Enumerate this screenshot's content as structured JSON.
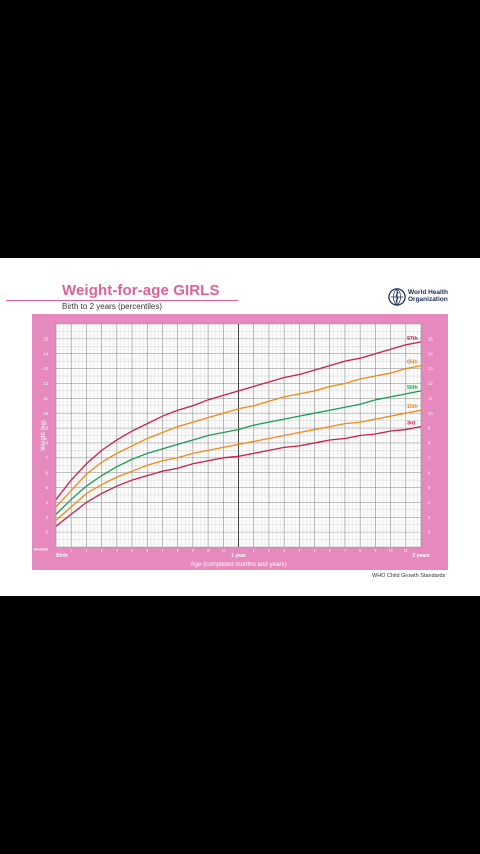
{
  "card": {
    "title": "Weight-for-age GIRLS",
    "subtitle": "Birth to 2 years (percentiles)",
    "logo_text": "World Health\nOrganization",
    "footer": "WHO Child Growth Standards"
  },
  "colors": {
    "frame": "#e689bd",
    "title": "#e0609a",
    "p97": "#c8204f",
    "p85": "#ee8a16",
    "p50": "#1b9b54",
    "p15": "#ee8a16",
    "p3": "#c8204f"
  },
  "chart_data": {
    "type": "line",
    "title": "Weight-for-age GIRLS",
    "subtitle": "Birth to 2 years (percentiles)",
    "xlabel": "Age (completed months and years)",
    "ylabel": "Weight (kg)",
    "months_label": "Months",
    "x_start_label": "Birth",
    "x_milestones": [
      {
        "month": 12,
        "label": "1 year"
      },
      {
        "month": 24,
        "label": "2 years"
      }
    ],
    "x_month_ticks": [
      "1",
      "2",
      "3",
      "4",
      "5",
      "6",
      "7",
      "8",
      "9",
      "10",
      "11",
      "",
      "1",
      "2",
      "3",
      "4",
      "5",
      "6",
      "7",
      "8",
      "9",
      "10",
      "11",
      ""
    ],
    "xlim": [
      0,
      24
    ],
    "ylim": [
      1,
      16
    ],
    "y_ticks": [
      2,
      3,
      4,
      5,
      6,
      7,
      8,
      9,
      10,
      11,
      12,
      13,
      14,
      15
    ],
    "grid": true,
    "x": [
      0,
      1,
      2,
      3,
      4,
      5,
      6,
      7,
      8,
      9,
      10,
      11,
      12,
      13,
      14,
      15,
      16,
      17,
      18,
      19,
      20,
      21,
      22,
      23,
      24
    ],
    "series": [
      {
        "name": "97th",
        "values": [
          4.2,
          5.5,
          6.6,
          7.5,
          8.2,
          8.8,
          9.3,
          9.8,
          10.2,
          10.5,
          10.9,
          11.2,
          11.5,
          11.8,
          12.1,
          12.4,
          12.6,
          12.9,
          13.2,
          13.5,
          13.7,
          14.0,
          14.3,
          14.6,
          14.8
        ]
      },
      {
        "name": "85th",
        "values": [
          3.7,
          4.8,
          5.9,
          6.7,
          7.3,
          7.8,
          8.3,
          8.7,
          9.1,
          9.4,
          9.7,
          10.0,
          10.3,
          10.5,
          10.8,
          11.1,
          11.3,
          11.5,
          11.8,
          12.0,
          12.3,
          12.5,
          12.7,
          13.0,
          13.2
        ]
      },
      {
        "name": "50th",
        "values": [
          3.2,
          4.2,
          5.1,
          5.8,
          6.4,
          6.9,
          7.3,
          7.6,
          7.9,
          8.2,
          8.5,
          8.7,
          8.9,
          9.2,
          9.4,
          9.6,
          9.8,
          10.0,
          10.2,
          10.4,
          10.6,
          10.9,
          11.1,
          11.3,
          11.5
        ]
      },
      {
        "name": "15th",
        "values": [
          2.8,
          3.7,
          4.6,
          5.2,
          5.7,
          6.1,
          6.5,
          6.8,
          7.0,
          7.3,
          7.5,
          7.7,
          7.9,
          8.1,
          8.3,
          8.5,
          8.7,
          8.9,
          9.1,
          9.3,
          9.4,
          9.6,
          9.8,
          10.0,
          10.2
        ]
      },
      {
        "name": "3rd",
        "values": [
          2.4,
          3.2,
          4.0,
          4.6,
          5.1,
          5.5,
          5.8,
          6.1,
          6.3,
          6.6,
          6.8,
          7.0,
          7.1,
          7.3,
          7.5,
          7.7,
          7.8,
          8.0,
          8.2,
          8.3,
          8.5,
          8.6,
          8.8,
          8.9,
          9.1
        ]
      }
    ]
  }
}
